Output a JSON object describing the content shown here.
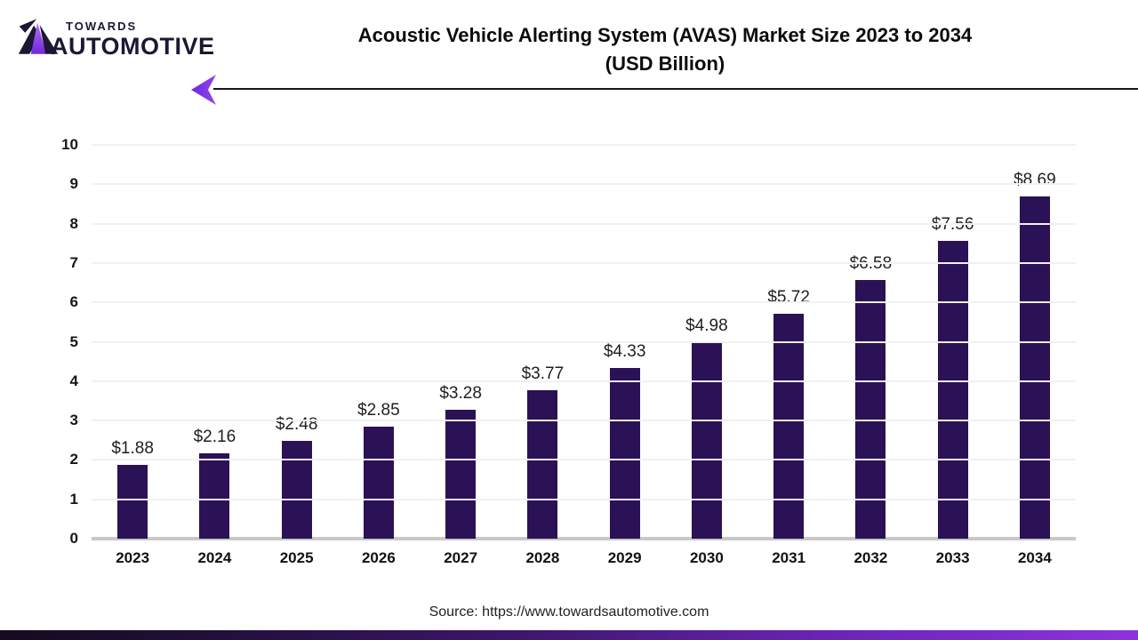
{
  "header": {
    "logo": {
      "top": "TOWARDS",
      "bottom": "AUTOMOTIVE"
    },
    "title_line1": "Acoustic Vehicle Alerting System (AVAS) Market Size 2023 to 2034",
    "title_line2": "(USD Billion)"
  },
  "chart_data": {
    "type": "bar",
    "title": "Acoustic Vehicle Alerting System (AVAS) Market Size 2023 to 2034 (USD Billion)",
    "categories": [
      "2023",
      "2024",
      "2025",
      "2026",
      "2027",
      "2028",
      "2029",
      "2030",
      "2031",
      "2032",
      "2033",
      "2034"
    ],
    "values": [
      1.88,
      2.16,
      2.48,
      2.85,
      3.28,
      3.77,
      4.33,
      4.98,
      5.72,
      6.58,
      7.56,
      8.69
    ],
    "value_labels": [
      "$1.88",
      "$2.16",
      "$2.48",
      "$2.85",
      "$3.28",
      "$3.77",
      "$4.33",
      "$4.98",
      "$5.72",
      "$6.58",
      "$7.56",
      "$8.69"
    ],
    "yticks": [
      "0",
      "1",
      "2",
      "3",
      "4",
      "5",
      "6",
      "7",
      "8",
      "9",
      "10"
    ],
    "ylim": [
      0,
      10
    ],
    "xlabel": "",
    "ylabel": "",
    "grid": true,
    "legend": "none",
    "bar_color": "#2b1155"
  },
  "footer": {
    "source": "Source: https://www.towardsautomotive.com"
  },
  "colors": {
    "bar": "#2b1155",
    "logo_dark": "#1e1733",
    "accent_purple": "#8d33de",
    "gridline": "#f1f1f1",
    "baseline": "#c8c8c8"
  }
}
